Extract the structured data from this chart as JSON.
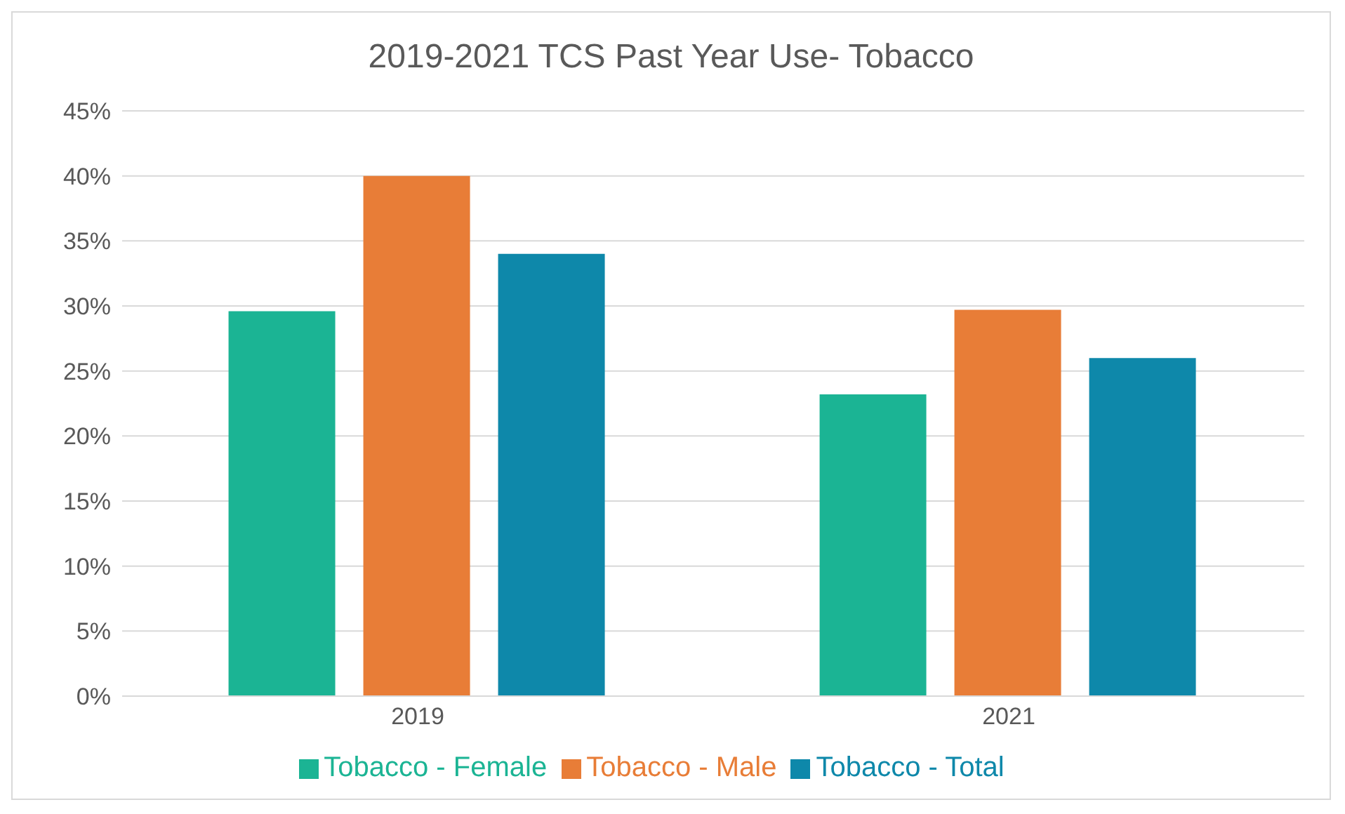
{
  "chart_data": {
    "type": "bar",
    "title": "2019-2021 TCS Past Year Use- Tobacco",
    "categories": [
      "2019",
      "2021"
    ],
    "series": [
      {
        "name": "Tobacco - Female",
        "color": "#1bb494",
        "values": [
          29.6,
          23.2
        ]
      },
      {
        "name": "Tobacco - Male",
        "color": "#e87d37",
        "values": [
          40,
          29.7
        ]
      },
      {
        "name": "Tobacco - Total",
        "color": "#0e88aa",
        "values": [
          34,
          26
        ]
      }
    ],
    "ylim": [
      0,
      45
    ],
    "yticks": [
      {
        "value": 0,
        "label": "0%"
      },
      {
        "value": 5,
        "label": "5%"
      },
      {
        "value": 10,
        "label": "10%"
      },
      {
        "value": 15,
        "label": "15%"
      },
      {
        "value": 20,
        "label": "20%"
      },
      {
        "value": 25,
        "label": "25%"
      },
      {
        "value": 30,
        "label": "30%"
      },
      {
        "value": 35,
        "label": "35%"
      },
      {
        "value": 40,
        "label": "40%"
      },
      {
        "value": 45,
        "label": "45%"
      }
    ],
    "grid": "y",
    "legend": "bottom"
  }
}
